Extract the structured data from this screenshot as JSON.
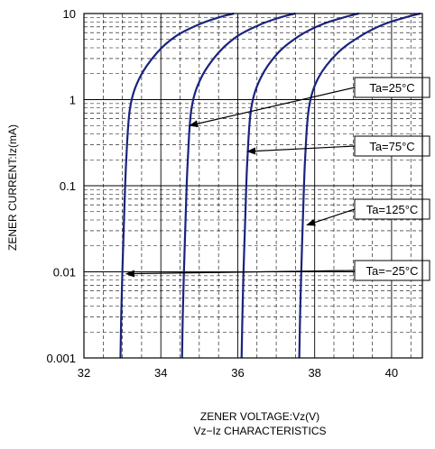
{
  "chart_data": {
    "type": "line",
    "xlabel": "ZENER VOLTAGE:Vz(V)",
    "ylabel": "ZENER CURRENT:Iz(mA)",
    "subtitle": "Vz−Iz CHARACTERISTICS",
    "xlim": [
      32,
      40.8
    ],
    "ylim": [
      0.001,
      10
    ],
    "yscale": "log",
    "grid": true,
    "x_ticks": [
      "32",
      "34",
      "36",
      "38",
      "40"
    ],
    "y_ticks": [
      "0.001",
      "0.01",
      "0.1",
      "1",
      "10"
    ],
    "series": [
      {
        "x": [
          32.95,
          32.97,
          33.0,
          33.05,
          33.1,
          33.2,
          33.45,
          33.9,
          34.4,
          35.0,
          35.5,
          35.9
        ],
        "y": [
          0.001,
          0.003,
          0.01,
          0.05,
          0.2,
          0.8,
          1.8,
          3.5,
          5.5,
          7.5,
          9.0,
          10
        ]
      },
      {
        "x": [
          34.55,
          34.57,
          34.6,
          34.65,
          34.7,
          34.8,
          35.05,
          35.5,
          36.0,
          36.6,
          37.1,
          37.5
        ],
        "y": [
          0.001,
          0.003,
          0.01,
          0.05,
          0.2,
          0.8,
          1.8,
          3.5,
          5.5,
          7.5,
          9.0,
          10
        ]
      },
      {
        "x": [
          36.1,
          36.12,
          36.15,
          36.2,
          36.25,
          36.35,
          36.6,
          37.05,
          37.6,
          38.2,
          38.75,
          39.15
        ],
        "y": [
          0.001,
          0.003,
          0.01,
          0.05,
          0.2,
          0.8,
          1.8,
          3.5,
          5.5,
          7.5,
          9.0,
          10
        ]
      },
      {
        "x": [
          37.6,
          37.62,
          37.65,
          37.7,
          37.75,
          37.85,
          38.1,
          38.6,
          39.2,
          39.8,
          40.35,
          40.75
        ],
        "y": [
          0.001,
          0.003,
          0.01,
          0.05,
          0.2,
          0.8,
          1.8,
          3.5,
          5.5,
          7.5,
          9.0,
          10
        ]
      }
    ],
    "annotations": [
      {
        "label": "Ta=25°C",
        "target": [
          34.75,
          0.5
        ]
      },
      {
        "label": "Ta=75°C",
        "target": [
          36.25,
          0.25
        ]
      },
      {
        "label": "Ta=125°C",
        "target": [
          37.8,
          0.035
        ]
      },
      {
        "label": "Ta=−25°C",
        "target": [
          33.1,
          0.0095
        ]
      }
    ]
  },
  "colors": {
    "curve": "#1a237e",
    "grid": "#000000",
    "frame": "#000000"
  }
}
